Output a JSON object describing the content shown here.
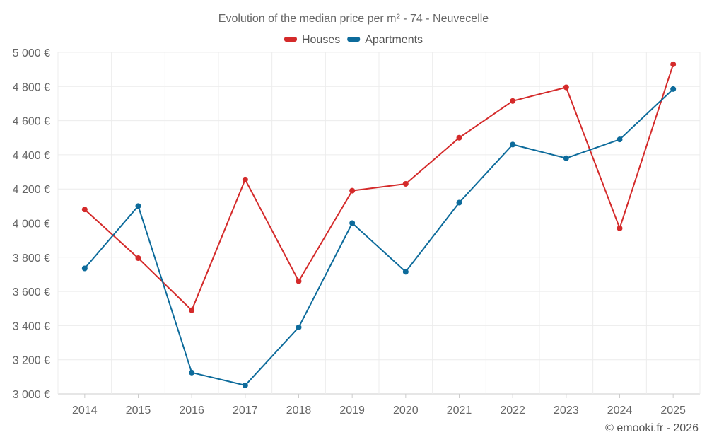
{
  "chart_data": {
    "type": "line",
    "title": "Evolution of the median price per m² - 74 - Neuvecelle",
    "categories": [
      "2014",
      "2015",
      "2016",
      "2017",
      "2018",
      "2019",
      "2020",
      "2021",
      "2022",
      "2023",
      "2024",
      "2025"
    ],
    "series": [
      {
        "name": "Houses",
        "color": "#d42a2a",
        "values": [
          4080,
          3795,
          3490,
          4255,
          3660,
          4190,
          4230,
          4500,
          4715,
          4795,
          3970,
          4930
        ]
      },
      {
        "name": "Apartments",
        "color": "#0d6b9b",
        "values": [
          3735,
          4100,
          3125,
          3050,
          3390,
          4000,
          3715,
          4120,
          4460,
          4380,
          4490,
          4785
        ]
      }
    ],
    "ylim": [
      3000,
      5000
    ],
    "yticks": [
      3000,
      3200,
      3400,
      3600,
      3800,
      4000,
      4200,
      4400,
      4600,
      4800,
      5000
    ],
    "ytick_labels": [
      "3 000 €",
      "3 200 €",
      "3 400 €",
      "3 600 €",
      "3 800 €",
      "4 000 €",
      "4 200 €",
      "4 400 €",
      "4 600 €",
      "4 800 €",
      "5 000 €"
    ],
    "xlabel": "",
    "ylabel": "",
    "grid": true,
    "legend_position": "top-center"
  },
  "credit": "© emooki.fr - 2026"
}
